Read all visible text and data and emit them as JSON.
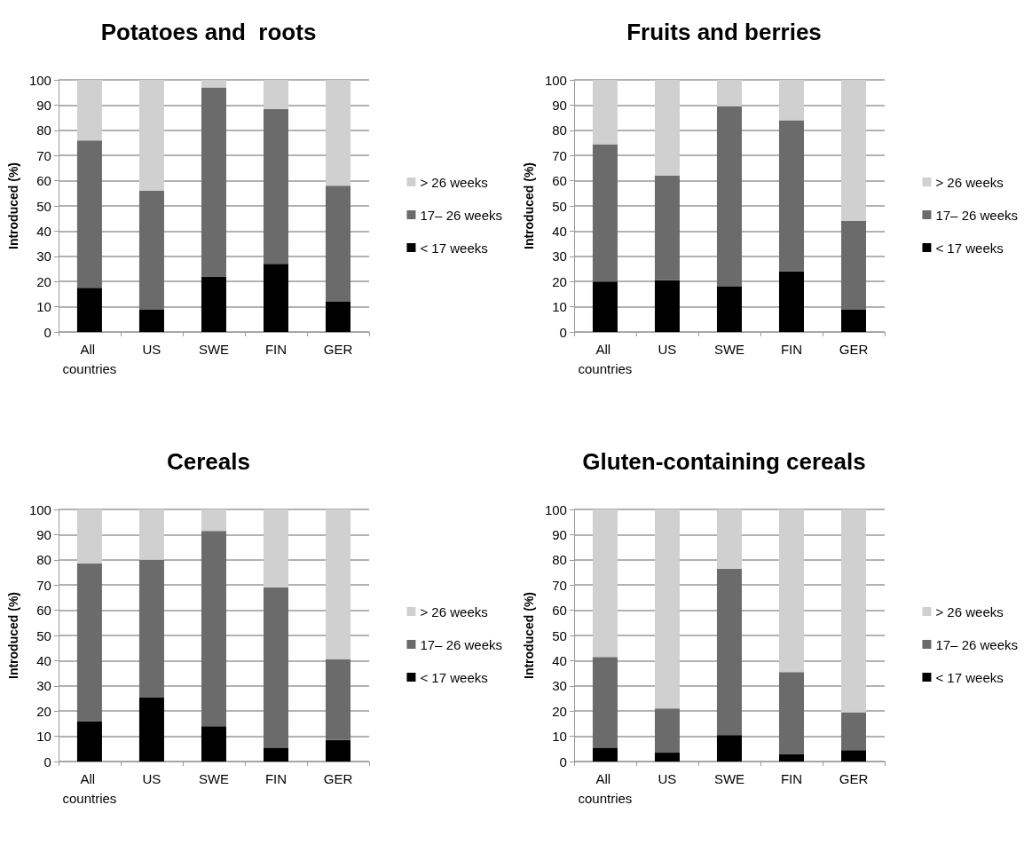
{
  "chart_data": [
    {
      "type": "bar",
      "title": "Potatoes and  roots",
      "ylabel": "Introduced (%)",
      "categories": [
        "All countries",
        "US",
        "SWE",
        "FIN",
        "GER"
      ],
      "stacked": true,
      "ylim": [
        0,
        100
      ],
      "yticks": [
        0,
        10,
        20,
        30,
        40,
        50,
        60,
        70,
        80,
        90,
        100
      ],
      "grid": "y",
      "legend": "right",
      "series": [
        {
          "name": "< 17 weeks",
          "color": "#000000",
          "values": [
            17.5,
            9,
            22,
            27,
            12
          ]
        },
        {
          "name": "17– 26 weeks",
          "color": "#6b6b6b",
          "values": [
            58.5,
            47,
            75,
            61.5,
            46
          ]
        },
        {
          "name": "> 26 weeks",
          "color": "#d0d0d0",
          "values": [
            24,
            44,
            3,
            11.5,
            42
          ]
        }
      ]
    },
    {
      "type": "bar",
      "title": "Fruits and berries",
      "ylabel": "Introduced (%)",
      "categories": [
        "All countries",
        "US",
        "SWE",
        "FIN",
        "GER"
      ],
      "stacked": true,
      "ylim": [
        0,
        100
      ],
      "yticks": [
        0,
        10,
        20,
        30,
        40,
        50,
        60,
        70,
        80,
        90,
        100
      ],
      "grid": "y",
      "legend": "right",
      "series": [
        {
          "name": "< 17 weeks",
          "color": "#000000",
          "values": [
            20,
            20.5,
            18,
            24,
            9
          ]
        },
        {
          "name": "17– 26 weeks",
          "color": "#6b6b6b",
          "values": [
            54.5,
            41.5,
            71.5,
            60,
            35
          ]
        },
        {
          "name": "> 26 weeks",
          "color": "#d0d0d0",
          "values": [
            25.5,
            38,
            10.5,
            16,
            56
          ]
        }
      ]
    },
    {
      "type": "bar",
      "title": "Cereals",
      "ylabel": "Introduced (%)",
      "categories": [
        "All countries",
        "US",
        "SWE",
        "FIN",
        "GER"
      ],
      "stacked": true,
      "ylim": [
        0,
        100
      ],
      "yticks": [
        0,
        10,
        20,
        30,
        40,
        50,
        60,
        70,
        80,
        90,
        100
      ],
      "grid": "y",
      "legend": "right",
      "series": [
        {
          "name": "< 17 weeks",
          "color": "#000000",
          "values": [
            16,
            25.5,
            14,
            5.5,
            8.5
          ]
        },
        {
          "name": "17– 26 weeks",
          "color": "#6b6b6b",
          "values": [
            62.5,
            54.5,
            77.5,
            63.5,
            32
          ]
        },
        {
          "name": "> 26 weeks",
          "color": "#d0d0d0",
          "values": [
            21.5,
            20,
            8.5,
            31,
            59.5
          ]
        }
      ]
    },
    {
      "type": "bar",
      "title": "Gluten-containing cereals",
      "ylabel": "Introduced (%)",
      "categories": [
        "All countries",
        "US",
        "SWE",
        "FIN",
        "GER"
      ],
      "stacked": true,
      "ylim": [
        0,
        100
      ],
      "yticks": [
        0,
        10,
        20,
        30,
        40,
        50,
        60,
        70,
        80,
        90,
        100
      ],
      "grid": "y",
      "legend": "right",
      "series": [
        {
          "name": "< 17 weeks",
          "color": "#000000",
          "values": [
            5.5,
            3.5,
            10.5,
            3,
            4.5
          ]
        },
        {
          "name": "17– 26 weeks",
          "color": "#6b6b6b",
          "values": [
            36,
            17.5,
            66,
            32.5,
            15
          ]
        },
        {
          "name": "> 26 weeks",
          "color": "#d0d0d0",
          "values": [
            58.5,
            79,
            23.5,
            64.5,
            80.5
          ]
        }
      ]
    }
  ]
}
